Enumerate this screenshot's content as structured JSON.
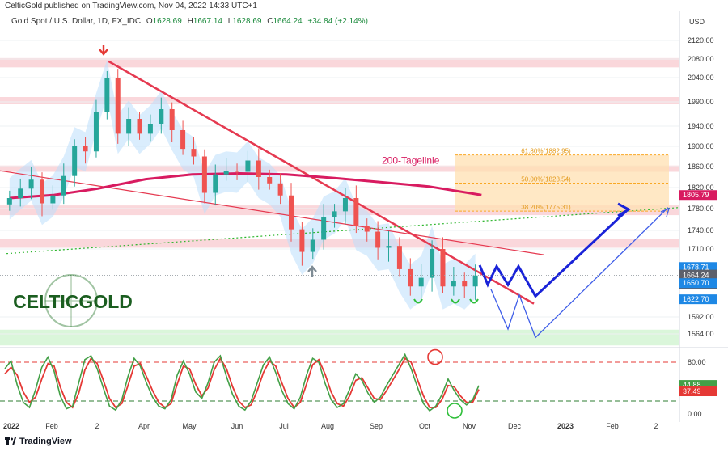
{
  "header": {
    "published": "CelticGold published on TradingView.com, Nov 04, 2022 14:33 UTC+1"
  },
  "instrument": {
    "symbol": "Gold Spot / U.S. Dollar, 1D, FX_IDC",
    "ohlc": [
      {
        "k": "O",
        "v": "1628.69"
      },
      {
        "k": "H",
        "v": "1667.14"
      },
      {
        "k": "L",
        "v": "1628.69"
      },
      {
        "k": "C",
        "v": "1664.24"
      }
    ],
    "change": "+34.84 (+2.14%)"
  },
  "footer": {
    "brand": "TradingView"
  },
  "logo": {
    "text": "CELTICGOLD"
  },
  "colors": {
    "up": "#26a69a",
    "down": "#ef5350",
    "trend": "#e53950",
    "ma200": "#d81b60",
    "fib": "#f9a825",
    "forecast": "#1a23d8",
    "stoch_k": "#43a047",
    "stoch_d": "#e53935",
    "cloud": "#bbdefb"
  },
  "chart_data": [
    {
      "type": "candlestick",
      "title": "",
      "currency": "USD",
      "y_ticks": [
        2120,
        2080,
        2040,
        1990,
        1940,
        1900,
        1860,
        1820,
        1780,
        1740,
        1710,
        1592,
        1564
      ],
      "x_ticks": [
        "2022",
        "Feb",
        "2",
        "Apr",
        "May",
        "Jun",
        "Jul",
        "Aug",
        "Sep",
        "Oct",
        "Nov",
        "Dec",
        "2023",
        "Feb",
        "2"
      ],
      "series": [
        {
          "name": "Gold Spot close (approx.)",
          "points": [
            [
              "2022-01-03",
              1800
            ],
            [
              "2022-01-10",
              1818
            ],
            [
              "2022-01-17",
              1835
            ],
            [
              "2022-01-24",
              1790
            ],
            [
              "2022-01-31",
              1805
            ],
            [
              "2022-02-07",
              1842
            ],
            [
              "2022-02-14",
              1900
            ],
            [
              "2022-02-21",
              1890
            ],
            [
              "2022-02-28",
              1970
            ],
            [
              "2022-03-07",
              2040
            ],
            [
              "2022-03-14",
              1925
            ],
            [
              "2022-03-21",
              1955
            ],
            [
              "2022-03-28",
              1925
            ],
            [
              "2022-04-04",
              1945
            ],
            [
              "2022-04-11",
              1975
            ],
            [
              "2022-04-18",
              1932
            ],
            [
              "2022-04-25",
              1895
            ],
            [
              "2022-05-02",
              1880
            ],
            [
              "2022-05-09",
              1810
            ],
            [
              "2022-05-16",
              1845
            ],
            [
              "2022-05-23",
              1852
            ],
            [
              "2022-05-30",
              1850
            ],
            [
              "2022-06-06",
              1872
            ],
            [
              "2022-06-13",
              1840
            ],
            [
              "2022-06-20",
              1828
            ],
            [
              "2022-06-27",
              1805
            ],
            [
              "2022-07-04",
              1742
            ],
            [
              "2022-07-11",
              1705
            ],
            [
              "2022-07-18",
              1725
            ],
            [
              "2022-07-25",
              1765
            ],
            [
              "2022-08-01",
              1775
            ],
            [
              "2022-08-08",
              1800
            ],
            [
              "2022-08-15",
              1748
            ],
            [
              "2022-08-22",
              1738
            ],
            [
              "2022-08-29",
              1712
            ],
            [
              "2022-09-05",
              1715
            ],
            [
              "2022-09-12",
              1675
            ],
            [
              "2022-09-19",
              1645
            ],
            [
              "2022-09-26",
              1660
            ],
            [
              "2022-10-03",
              1710
            ],
            [
              "2022-10-10",
              1645
            ],
            [
              "2022-10-17",
              1655
            ],
            [
              "2022-10-24",
              1645
            ],
            [
              "2022-10-31",
              1664
            ]
          ]
        },
        {
          "name": "200-Tagelinie",
          "points": [
            [
              "2022-01-03",
              1800
            ],
            [
              "2022-02-01",
              1806
            ],
            [
              "2022-03-01",
              1818
            ],
            [
              "2022-04-01",
              1836
            ],
            [
              "2022-05-01",
              1845
            ],
            [
              "2022-06-01",
              1847
            ],
            [
              "2022-07-01",
              1845
            ],
            [
              "2022-08-01",
              1838
            ],
            [
              "2022-09-01",
              1830
            ],
            [
              "2022-10-01",
              1822
            ],
            [
              "2022-11-04",
              1805.79
            ]
          ]
        }
      ],
      "levels": {
        "last_close": 1664.24,
        "countdown": "08:26:51",
        "ma200": 1805.79,
        "marker_1": 1678.71,
        "marker_2": 1650.7,
        "marker_3": 1622.7
      },
      "fibonacci": [
        {
          "label": "61.80%(1882.95)",
          "value": 1882.95
        },
        {
          "label": "50.00%(1828.54)",
          "value": 1828.54
        },
        {
          "label": "38.20%(1775.31)",
          "value": 1775.31
        }
      ],
      "annotations": [
        "200-Tagelinie"
      ],
      "grid": true,
      "y_axis": "right"
    },
    {
      "type": "line",
      "title": "",
      "y_ticks": [
        80.0,
        40.0,
        0.0
      ],
      "reference_lines": [
        80,
        20
      ],
      "series": [
        {
          "name": "stoch_k",
          "last": 44.88
        },
        {
          "name": "stoch_d",
          "last": 37.49
        }
      ],
      "values_k": [
        70,
        82,
        45,
        18,
        10,
        38,
        72,
        88,
        66,
        28,
        8,
        12,
        48,
        84,
        90,
        70,
        40,
        12,
        6,
        22,
        58,
        86,
        74,
        48,
        26,
        12,
        8,
        22,
        60,
        82,
        62,
        34,
        24,
        48,
        80,
        90,
        58,
        30,
        12,
        6,
        20,
        48,
        76,
        88,
        64,
        36,
        16,
        8,
        26,
        60,
        86,
        80,
        48,
        22,
        10,
        16,
        38,
        62,
        52,
        32,
        18,
        26,
        44,
        60,
        76,
        92,
        70,
        42,
        16,
        5,
        12,
        30,
        54,
        36,
        22,
        14,
        22,
        44
      ],
      "values_d": [
        62,
        72,
        60,
        34,
        18,
        26,
        54,
        78,
        74,
        42,
        18,
        10,
        32,
        68,
        86,
        78,
        52,
        24,
        10,
        16,
        44,
        74,
        78,
        58,
        36,
        18,
        10,
        16,
        46,
        74,
        70,
        46,
        28,
        40,
        68,
        86,
        70,
        42,
        20,
        10,
        14,
        36,
        64,
        82,
        74,
        48,
        24,
        10,
        18,
        46,
        76,
        84,
        62,
        34,
        16,
        12,
        28,
        52,
        56,
        40,
        24,
        22,
        36,
        52,
        68,
        86,
        80,
        54,
        28,
        10,
        10,
        22,
        44,
        42,
        28,
        18,
        18,
        38
      ]
    }
  ]
}
